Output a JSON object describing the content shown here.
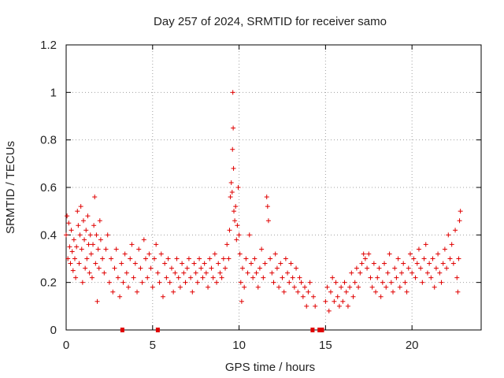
{
  "colors": {
    "series": "#e00000",
    "grid": "#a0a0a0",
    "axis": "#000000"
  },
  "chart_data": {
    "type": "scatter",
    "title": "Day 257 of 2024, SRMTID for receiver samo",
    "xlabel": "GPS time / hours",
    "ylabel": "SRMTID / TECUs",
    "xlim": [
      0,
      24
    ],
    "ylim": [
      0,
      1.2
    ],
    "xticks": [
      0,
      5,
      10,
      15,
      20
    ],
    "xtick_labels": [
      "0",
      "5",
      "10",
      "15",
      "20"
    ],
    "yticks": [
      0,
      0.2,
      0.4,
      0.6,
      0.8,
      1,
      1.2
    ],
    "ytick_labels": [
      "0",
      "0.2",
      "0.4",
      "0.6",
      "0.8",
      "1",
      "1.2"
    ],
    "grid": true,
    "marker": "+",
    "series": [
      {
        "name": "SRMTID",
        "points": [
          [
            0.0,
            0.4
          ],
          [
            0.05,
            0.48
          ],
          [
            0.1,
            0.3
          ],
          [
            0.15,
            0.45
          ],
          [
            0.2,
            0.35
          ],
          [
            0.25,
            0.28
          ],
          [
            0.3,
            0.42
          ],
          [
            0.35,
            0.33
          ],
          [
            0.4,
            0.25
          ],
          [
            0.45,
            0.38
          ],
          [
            0.5,
            0.3
          ],
          [
            0.55,
            0.22
          ],
          [
            0.6,
            0.35
          ],
          [
            0.65,
            0.5
          ],
          [
            0.7,
            0.44
          ],
          [
            0.75,
            0.28
          ],
          [
            0.8,
            0.4
          ],
          [
            0.85,
            0.52
          ],
          [
            0.9,
            0.34
          ],
          [
            0.95,
            0.2
          ],
          [
            1.0,
            0.46
          ],
          [
            1.05,
            0.38
          ],
          [
            1.1,
            0.26
          ],
          [
            1.15,
            0.42
          ],
          [
            1.2,
            0.3
          ],
          [
            1.25,
            0.48
          ],
          [
            1.3,
            0.36
          ],
          [
            1.35,
            0.24
          ],
          [
            1.4,
            0.4
          ],
          [
            1.45,
            0.32
          ],
          [
            1.5,
            0.22
          ],
          [
            1.55,
            0.36
          ],
          [
            1.6,
            0.44
          ],
          [
            1.65,
            0.56
          ],
          [
            1.7,
            0.28
          ],
          [
            1.75,
            0.4
          ],
          [
            1.8,
            0.12
          ],
          [
            1.85,
            0.34
          ],
          [
            1.9,
            0.26
          ],
          [
            1.95,
            0.46
          ],
          [
            2.0,
            0.38
          ],
          [
            2.1,
            0.3
          ],
          [
            2.2,
            0.24
          ],
          [
            2.3,
            0.34
          ],
          [
            2.4,
            0.4
          ],
          [
            2.5,
            0.2
          ],
          [
            2.6,
            0.3
          ],
          [
            2.7,
            0.16
          ],
          [
            2.8,
            0.26
          ],
          [
            2.9,
            0.34
          ],
          [
            3.0,
            0.22
          ],
          [
            3.1,
            0.14
          ],
          [
            3.2,
            0.28
          ],
          [
            3.3,
            0.2
          ],
          [
            3.4,
            0.32
          ],
          [
            3.5,
            0.24
          ],
          [
            3.6,
            0.18
          ],
          [
            3.7,
            0.3
          ],
          [
            3.8,
            0.36
          ],
          [
            3.9,
            0.22
          ],
          [
            4.0,
            0.28
          ],
          [
            4.1,
            0.16
          ],
          [
            4.2,
            0.34
          ],
          [
            4.3,
            0.26
          ],
          [
            4.4,
            0.2
          ],
          [
            4.5,
            0.38
          ],
          [
            4.6,
            0.3
          ],
          [
            4.7,
            0.22
          ],
          [
            4.8,
            0.32
          ],
          [
            4.9,
            0.26
          ],
          [
            5.0,
            0.18
          ],
          [
            5.1,
            0.3
          ],
          [
            5.2,
            0.36
          ],
          [
            5.3,
            0.24
          ],
          [
            5.4,
            0.2
          ],
          [
            5.5,
            0.32
          ],
          [
            5.6,
            0.14
          ],
          [
            5.7,
            0.28
          ],
          [
            5.8,
            0.22
          ],
          [
            5.9,
            0.3
          ],
          [
            6.0,
            0.2
          ],
          [
            6.1,
            0.26
          ],
          [
            6.2,
            0.16
          ],
          [
            6.3,
            0.24
          ],
          [
            6.4,
            0.3
          ],
          [
            6.5,
            0.22
          ],
          [
            6.6,
            0.18
          ],
          [
            6.7,
            0.28
          ],
          [
            6.8,
            0.24
          ],
          [
            6.9,
            0.2
          ],
          [
            7.0,
            0.26
          ],
          [
            7.1,
            0.3
          ],
          [
            7.2,
            0.22
          ],
          [
            7.3,
            0.16
          ],
          [
            7.4,
            0.28
          ],
          [
            7.5,
            0.24
          ],
          [
            7.6,
            0.2
          ],
          [
            7.7,
            0.3
          ],
          [
            7.8,
            0.26
          ],
          [
            7.9,
            0.22
          ],
          [
            8.0,
            0.28
          ],
          [
            8.1,
            0.24
          ],
          [
            8.2,
            0.18
          ],
          [
            8.3,
            0.3
          ],
          [
            8.4,
            0.26
          ],
          [
            8.5,
            0.22
          ],
          [
            8.6,
            0.32
          ],
          [
            8.7,
            0.2
          ],
          [
            8.8,
            0.28
          ],
          [
            8.9,
            0.24
          ],
          [
            9.0,
            0.22
          ],
          [
            9.1,
            0.3
          ],
          [
            9.2,
            0.26
          ],
          [
            9.3,
            0.36
          ],
          [
            9.4,
            0.3
          ],
          [
            9.45,
            0.42
          ],
          [
            9.5,
            0.56
          ],
          [
            9.55,
            0.62
          ],
          [
            9.6,
            0.58
          ],
          [
            9.62,
            0.76
          ],
          [
            9.64,
            1.0
          ],
          [
            9.66,
            0.85
          ],
          [
            9.68,
            0.68
          ],
          [
            9.7,
            0.5
          ],
          [
            9.75,
            0.46
          ],
          [
            9.8,
            0.52
          ],
          [
            9.85,
            0.38
          ],
          [
            9.9,
            0.44
          ],
          [
            9.95,
            0.6
          ],
          [
            10.0,
            0.4
          ],
          [
            10.05,
            0.32
          ],
          [
            10.1,
            0.2
          ],
          [
            10.15,
            0.12
          ],
          [
            10.2,
            0.26
          ],
          [
            10.3,
            0.18
          ],
          [
            10.4,
            0.3
          ],
          [
            10.5,
            0.24
          ],
          [
            10.6,
            0.4
          ],
          [
            10.7,
            0.28
          ],
          [
            10.8,
            0.22
          ],
          [
            10.9,
            0.3
          ],
          [
            11.0,
            0.24
          ],
          [
            11.1,
            0.18
          ],
          [
            11.2,
            0.26
          ],
          [
            11.3,
            0.34
          ],
          [
            11.4,
            0.22
          ],
          [
            11.5,
            0.28
          ],
          [
            11.6,
            0.56
          ],
          [
            11.65,
            0.52
          ],
          [
            11.7,
            0.46
          ],
          [
            11.8,
            0.3
          ],
          [
            11.9,
            0.24
          ],
          [
            12.0,
            0.2
          ],
          [
            12.1,
            0.32
          ],
          [
            12.2,
            0.26
          ],
          [
            12.3,
            0.18
          ],
          [
            12.4,
            0.28
          ],
          [
            12.5,
            0.22
          ],
          [
            12.6,
            0.16
          ],
          [
            12.7,
            0.3
          ],
          [
            12.8,
            0.24
          ],
          [
            12.9,
            0.2
          ],
          [
            13.0,
            0.28
          ],
          [
            13.1,
            0.22
          ],
          [
            13.2,
            0.18
          ],
          [
            13.3,
            0.26
          ],
          [
            13.4,
            0.16
          ],
          [
            13.5,
            0.22
          ],
          [
            13.6,
            0.2
          ],
          [
            13.7,
            0.14
          ],
          [
            13.8,
            0.18
          ],
          [
            13.9,
            0.1
          ],
          [
            14.0,
            0.16
          ],
          [
            14.1,
            0.2
          ],
          [
            14.3,
            0.14
          ],
          [
            14.4,
            0.1
          ],
          [
            15.0,
            0.12
          ],
          [
            15.1,
            0.18
          ],
          [
            15.2,
            0.08
          ],
          [
            15.3,
            0.16
          ],
          [
            15.4,
            0.22
          ],
          [
            15.5,
            0.12
          ],
          [
            15.6,
            0.2
          ],
          [
            15.7,
            0.14
          ],
          [
            15.8,
            0.1
          ],
          [
            15.9,
            0.18
          ],
          [
            16.0,
            0.12
          ],
          [
            16.1,
            0.2
          ],
          [
            16.2,
            0.16
          ],
          [
            16.3,
            0.1
          ],
          [
            16.4,
            0.18
          ],
          [
            16.5,
            0.24
          ],
          [
            16.6,
            0.14
          ],
          [
            16.7,
            0.2
          ],
          [
            16.8,
            0.26
          ],
          [
            16.9,
            0.18
          ],
          [
            17.0,
            0.24
          ],
          [
            17.1,
            0.28
          ],
          [
            17.2,
            0.32
          ],
          [
            17.3,
            0.3
          ],
          [
            17.4,
            0.26
          ],
          [
            17.5,
            0.32
          ],
          [
            17.6,
            0.22
          ],
          [
            17.7,
            0.18
          ],
          [
            17.8,
            0.28
          ],
          [
            17.9,
            0.16
          ],
          [
            18.0,
            0.22
          ],
          [
            18.1,
            0.26
          ],
          [
            18.2,
            0.14
          ],
          [
            18.3,
            0.2
          ],
          [
            18.4,
            0.28
          ],
          [
            18.5,
            0.18
          ],
          [
            18.6,
            0.24
          ],
          [
            18.7,
            0.32
          ],
          [
            18.8,
            0.2
          ],
          [
            18.9,
            0.16
          ],
          [
            19.0,
            0.26
          ],
          [
            19.1,
            0.22
          ],
          [
            19.2,
            0.3
          ],
          [
            19.3,
            0.18
          ],
          [
            19.4,
            0.24
          ],
          [
            19.5,
            0.28
          ],
          [
            19.6,
            0.2
          ],
          [
            19.7,
            0.16
          ],
          [
            19.8,
            0.26
          ],
          [
            19.9,
            0.32
          ],
          [
            20.0,
            0.24
          ],
          [
            20.1,
            0.3
          ],
          [
            20.2,
            0.22
          ],
          [
            20.3,
            0.28
          ],
          [
            20.4,
            0.34
          ],
          [
            20.5,
            0.26
          ],
          [
            20.6,
            0.2
          ],
          [
            20.7,
            0.3
          ],
          [
            20.8,
            0.36
          ],
          [
            20.9,
            0.24
          ],
          [
            21.0,
            0.28
          ],
          [
            21.1,
            0.22
          ],
          [
            21.2,
            0.3
          ],
          [
            21.3,
            0.18
          ],
          [
            21.4,
            0.26
          ],
          [
            21.5,
            0.32
          ],
          [
            21.6,
            0.24
          ],
          [
            21.7,
            0.2
          ],
          [
            21.8,
            0.28
          ],
          [
            21.9,
            0.34
          ],
          [
            22.0,
            0.26
          ],
          [
            22.1,
            0.4
          ],
          [
            22.2,
            0.3
          ],
          [
            22.3,
            0.36
          ],
          [
            22.4,
            0.28
          ],
          [
            22.5,
            0.42
          ],
          [
            22.6,
            0.22
          ],
          [
            22.65,
            0.16
          ],
          [
            22.7,
            0.3
          ],
          [
            22.75,
            0.46
          ],
          [
            22.8,
            0.5
          ]
        ]
      }
    ],
    "gaps": [
      3.25,
      5.3,
      14.25,
      14.65,
      14.8
    ]
  }
}
